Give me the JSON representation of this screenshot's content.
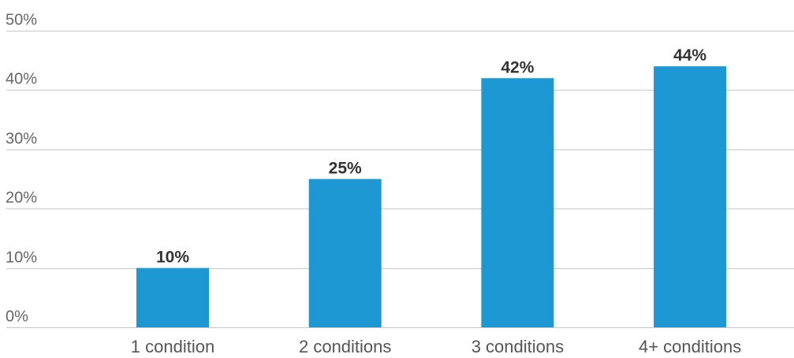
{
  "chart_data": {
    "type": "bar",
    "categories": [
      "1 condition",
      "2 conditions",
      "3 conditions",
      "4+ conditions"
    ],
    "values": [
      10,
      25,
      42,
      44
    ],
    "data_labels": [
      "10%",
      "25%",
      "42%",
      "44%"
    ],
    "y_ticks": [
      "0%",
      "10%",
      "20%",
      "30%",
      "40%",
      "50%"
    ],
    "ylim": [
      0,
      50
    ],
    "grid": true,
    "bar_color": "#1e98d2"
  }
}
